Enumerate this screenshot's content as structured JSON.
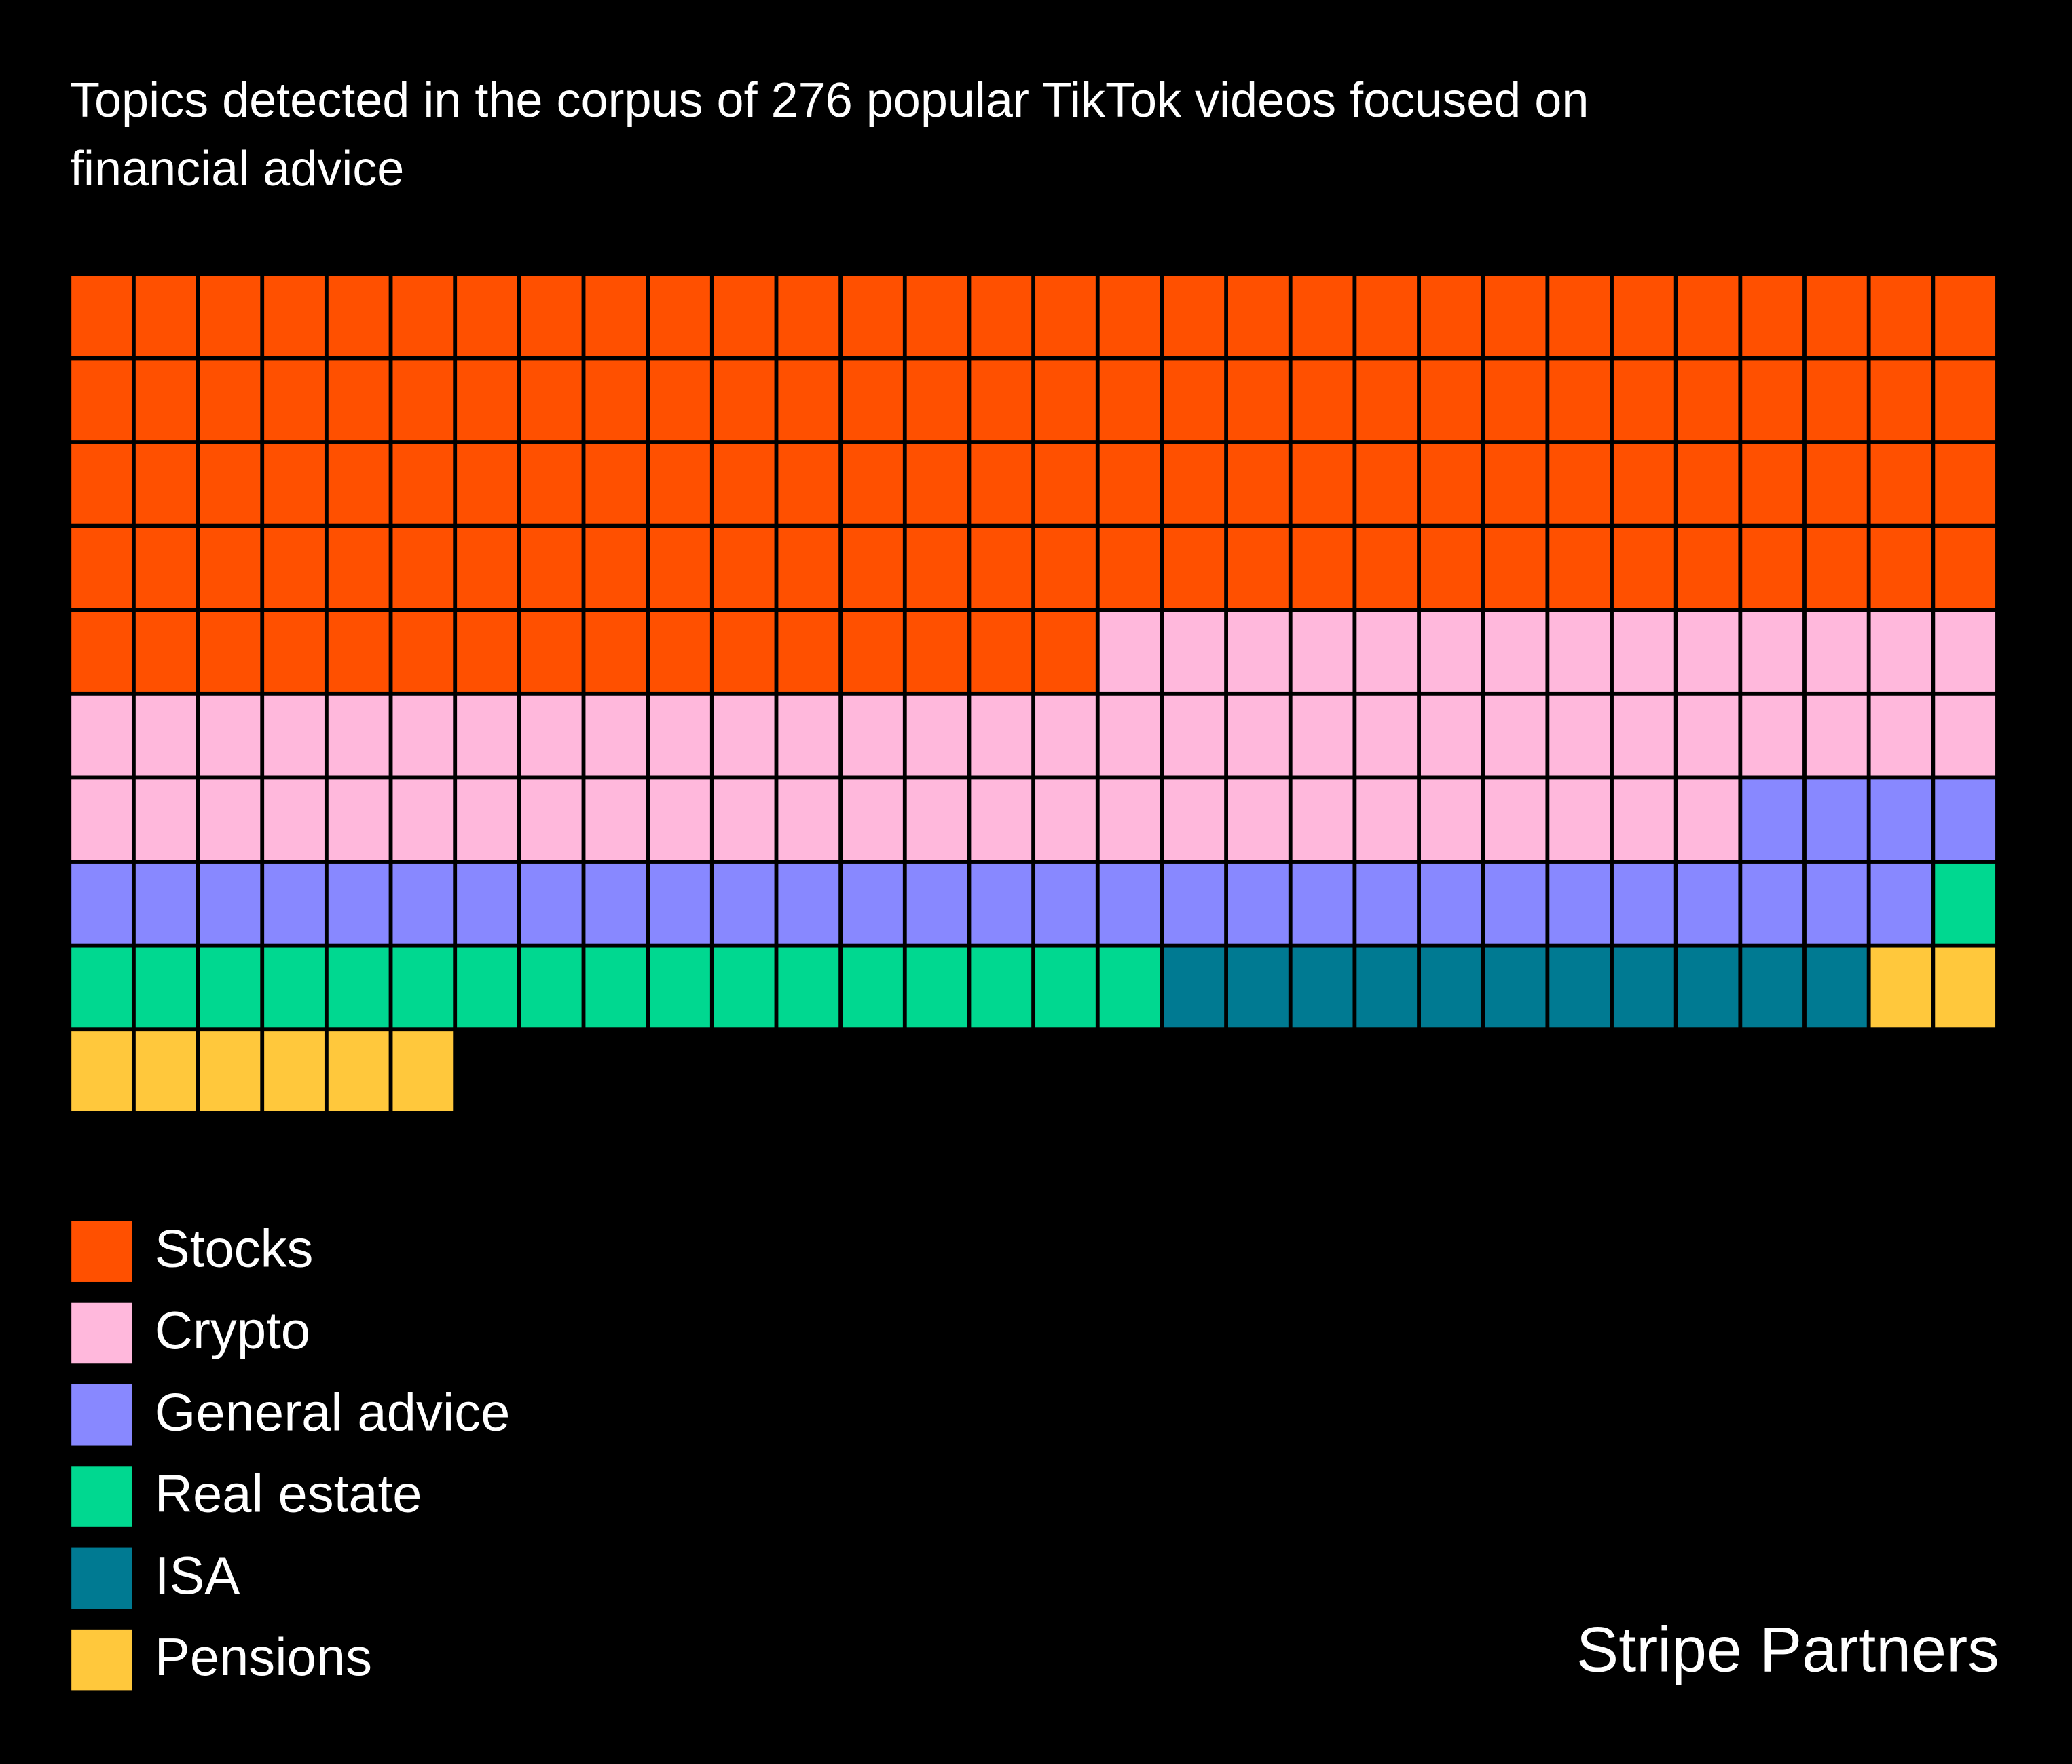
{
  "chart_data": {
    "type": "waffle",
    "title": "Topics detected in the corpus of 276 popular TikTok videos focused on financial advice",
    "series": [
      {
        "name": "Stocks",
        "color": "#ff5000",
        "value": 136
      },
      {
        "name": "Crypto",
        "color": "#ffb8dc",
        "value": 70
      },
      {
        "name": "General advice",
        "color": "#8888ff",
        "value": 33
      },
      {
        "name": "Real estate",
        "color": "#00d890",
        "value": 18
      },
      {
        "name": "ISA",
        "color": "#007a92",
        "value": 11
      },
      {
        "name": "Pensions",
        "color": "#ffc83c",
        "value": 8
      }
    ],
    "source": "Stripe Partners"
  }
}
